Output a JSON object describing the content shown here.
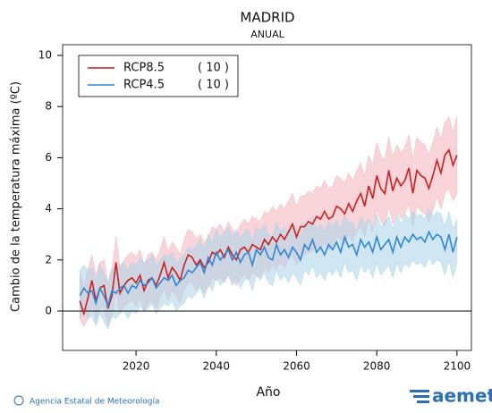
{
  "chart_data": {
    "type": "band-line",
    "title": "MADRID",
    "subtitle": "ANUAL",
    "xlabel": "Año",
    "ylabel": "Cambio de la temperatura máxima (ºC)",
    "xlim": [
      2001.7,
      2103.6
    ],
    "xticks": [
      2020,
      2040,
      2060,
      2080,
      2100
    ],
    "ylim": [
      -1.54,
      10.42
    ],
    "yticks": [
      0,
      2,
      4,
      6,
      8,
      10
    ],
    "zero_line": true,
    "legend": "upper left",
    "x": [
      2006,
      2007,
      2008,
      2009,
      2010,
      2011,
      2012,
      2013,
      2014,
      2015,
      2016,
      2017,
      2018,
      2019,
      2020,
      2021,
      2022,
      2023,
      2024,
      2025,
      2026,
      2027,
      2028,
      2029,
      2030,
      2031,
      2032,
      2033,
      2034,
      2035,
      2036,
      2037,
      2038,
      2039,
      2040,
      2041,
      2042,
      2043,
      2044,
      2045,
      2046,
      2047,
      2048,
      2049,
      2050,
      2051,
      2052,
      2053,
      2054,
      2055,
      2056,
      2057,
      2058,
      2059,
      2060,
      2061,
      2062,
      2063,
      2064,
      2065,
      2066,
      2067,
      2068,
      2069,
      2070,
      2071,
      2072,
      2073,
      2074,
      2075,
      2076,
      2077,
      2078,
      2079,
      2080,
      2081,
      2082,
      2083,
      2084,
      2085,
      2086,
      2087,
      2088,
      2089,
      2090,
      2091,
      2092,
      2093,
      2094,
      2095,
      2096,
      2097,
      2098,
      2099,
      2100
    ],
    "series": [
      {
        "name": "RCP8.5",
        "models_label": "( 10 )",
        "color": "#cc1f1f",
        "band_color": "#f4b3bb",
        "values": [
          0.4,
          -0.1,
          0.5,
          1.2,
          0.4,
          0.9,
          1.0,
          0.1,
          0.6,
          1.9,
          0.7,
          1.0,
          1.2,
          1.3,
          1.1,
          1.4,
          0.8,
          1.2,
          1.3,
          1.0,
          1.4,
          1.9,
          1.3,
          1.7,
          1.5,
          1.2,
          1.8,
          2.2,
          2.1,
          1.8,
          2.0,
          1.7,
          1.9,
          2.3,
          2.2,
          2.4,
          2.1,
          2.5,
          2.2,
          2.0,
          2.4,
          2.5,
          2.3,
          2.6,
          2.5,
          2.4,
          2.8,
          2.6,
          2.9,
          2.7,
          3.0,
          2.8,
          3.1,
          3.4,
          2.9,
          3.3,
          3.3,
          3.5,
          3.4,
          3.7,
          3.6,
          3.9,
          3.6,
          3.7,
          4.1,
          4.0,
          3.8,
          4.2,
          3.9,
          4.3,
          4.6,
          4.1,
          4.9,
          4.4,
          5.3,
          4.8,
          4.6,
          5.5,
          4.7,
          5.2,
          4.9,
          5.1,
          5.6,
          4.6,
          5.5,
          5.3,
          5.2,
          4.8,
          5.3,
          5.9,
          5.4,
          6.1,
          6.3,
          5.7,
          6.1
        ],
        "lower": [
          -0.3,
          -0.6,
          -0.3,
          0.3,
          -0.4,
          0.1,
          0.2,
          -0.6,
          -0.2,
          0.8,
          -0.1,
          0.2,
          0.3,
          0.4,
          0.2,
          0.5,
          0.0,
          0.3,
          0.4,
          0.1,
          0.5,
          0.9,
          0.4,
          0.8,
          0.6,
          0.3,
          0.8,
          1.1,
          1.1,
          0.8,
          1.0,
          0.7,
          0.9,
          1.3,
          1.2,
          1.3,
          1.1,
          1.4,
          1.2,
          1.0,
          1.3,
          1.4,
          1.2,
          1.5,
          1.4,
          1.3,
          1.7,
          1.5,
          1.8,
          1.6,
          1.9,
          1.7,
          2.0,
          2.2,
          1.8,
          2.1,
          2.2,
          2.3,
          2.3,
          2.5,
          2.4,
          2.7,
          2.4,
          2.5,
          2.9,
          2.8,
          2.6,
          3.0,
          2.7,
          3.1,
          3.3,
          2.9,
          3.6,
          3.1,
          4.0,
          3.5,
          3.3,
          4.1,
          3.4,
          3.9,
          3.6,
          3.8,
          4.2,
          3.3,
          4.1,
          3.9,
          3.8,
          3.5,
          3.9,
          4.5,
          4.0,
          4.6,
          4.8,
          4.3,
          4.6
        ],
        "upper": [
          1.5,
          0.9,
          1.6,
          2.2,
          1.4,
          1.9,
          2.0,
          1.1,
          1.6,
          2.9,
          1.7,
          2.0,
          2.2,
          2.3,
          2.1,
          2.4,
          1.8,
          2.2,
          2.3,
          2.0,
          2.4,
          2.9,
          2.3,
          2.7,
          2.5,
          2.2,
          2.8,
          3.2,
          3.1,
          2.8,
          3.0,
          2.7,
          2.9,
          3.3,
          3.2,
          3.4,
          3.1,
          3.5,
          3.2,
          3.0,
          3.4,
          3.6,
          3.4,
          3.7,
          3.6,
          3.5,
          3.9,
          3.8,
          4.1,
          3.9,
          4.2,
          4.0,
          4.3,
          4.6,
          4.1,
          4.5,
          4.5,
          4.7,
          4.6,
          4.9,
          4.8,
          5.1,
          4.8,
          4.9,
          5.3,
          5.2,
          5.0,
          5.4,
          5.1,
          5.5,
          5.8,
          5.3,
          6.1,
          5.7,
          6.6,
          6.1,
          5.9,
          6.8,
          6.0,
          6.5,
          6.2,
          6.4,
          6.9,
          5.9,
          6.8,
          6.6,
          6.5,
          6.1,
          6.6,
          7.2,
          6.7,
          7.4,
          7.6,
          7.0,
          7.6
        ]
      },
      {
        "name": "RCP4.5",
        "models_label": "( 10 )",
        "color": "#2f86d6",
        "band_color": "#a9d4ea",
        "values": [
          0.6,
          0.9,
          0.7,
          0.8,
          0.3,
          0.9,
          0.6,
          0.2,
          0.8,
          0.7,
          0.9,
          1.0,
          0.7,
          1.0,
          0.9,
          1.2,
          1.0,
          1.1,
          1.3,
          0.9,
          1.1,
          1.3,
          1.2,
          1.4,
          1.0,
          1.2,
          1.3,
          1.6,
          1.5,
          1.7,
          1.9,
          1.5,
          2.1,
          1.8,
          2.3,
          2.0,
          2.2,
          2.4,
          2.0,
          2.3,
          1.9,
          2.2,
          2.3,
          1.8,
          2.4,
          2.2,
          2.5,
          2.1,
          2.0,
          2.6,
          2.2,
          2.4,
          2.1,
          2.5,
          2.3,
          2.0,
          2.6,
          2.4,
          2.8,
          2.3,
          2.5,
          2.2,
          2.6,
          2.4,
          2.7,
          2.3,
          2.9,
          2.5,
          2.6,
          2.2,
          2.8,
          2.5,
          2.7,
          2.3,
          2.9,
          2.4,
          2.6,
          2.8,
          2.3,
          2.9,
          2.5,
          2.9,
          2.7,
          3.0,
          2.8,
          2.9,
          2.7,
          3.1,
          2.8,
          3.0,
          2.9,
          2.4,
          3.0,
          2.3,
          2.9
        ],
        "lower": [
          -0.3,
          0.0,
          -0.3,
          -0.2,
          -0.6,
          -0.1,
          -0.4,
          -0.7,
          -0.2,
          -0.3,
          -0.1,
          0.0,
          -0.3,
          0.0,
          -0.1,
          0.2,
          0.0,
          0.1,
          0.3,
          -0.1,
          0.1,
          0.3,
          0.2,
          0.4,
          0.0,
          0.2,
          0.3,
          0.6,
          0.5,
          0.7,
          0.9,
          0.5,
          1.1,
          0.8,
          1.3,
          1.0,
          1.2,
          1.4,
          1.0,
          1.3,
          0.9,
          1.2,
          1.3,
          0.8,
          1.4,
          1.2,
          1.5,
          1.1,
          1.0,
          1.6,
          1.2,
          1.4,
          1.1,
          1.5,
          1.3,
          1.0,
          1.6,
          1.4,
          1.8,
          1.3,
          1.5,
          1.2,
          1.6,
          1.4,
          1.7,
          1.3,
          1.9,
          1.5,
          1.6,
          1.2,
          1.8,
          1.5,
          1.7,
          1.3,
          1.9,
          1.4,
          1.6,
          1.8,
          1.3,
          1.9,
          1.5,
          1.9,
          1.7,
          2.0,
          1.8,
          1.9,
          1.7,
          2.1,
          1.8,
          2.0,
          1.9,
          1.4,
          2.0,
          1.3,
          1.9
        ],
        "upper": [
          1.6,
          1.8,
          1.6,
          1.7,
          1.2,
          1.8,
          1.5,
          1.1,
          1.7,
          1.6,
          1.8,
          1.9,
          1.6,
          1.9,
          1.8,
          2.1,
          1.9,
          2.0,
          2.2,
          1.8,
          2.0,
          2.2,
          2.1,
          2.3,
          1.9,
          2.1,
          2.2,
          2.5,
          2.4,
          2.6,
          2.8,
          2.4,
          3.0,
          2.7,
          3.2,
          2.9,
          3.1,
          3.3,
          2.9,
          3.2,
          2.8,
          3.1,
          3.2,
          2.7,
          3.3,
          3.1,
          3.4,
          3.0,
          2.9,
          3.5,
          3.1,
          3.3,
          3.0,
          3.4,
          3.2,
          2.9,
          3.5,
          3.3,
          3.7,
          3.2,
          3.4,
          3.1,
          3.5,
          3.3,
          3.6,
          3.2,
          3.8,
          3.4,
          3.5,
          3.1,
          3.7,
          3.4,
          3.6,
          3.2,
          3.8,
          3.3,
          3.5,
          3.7,
          3.2,
          3.8,
          3.4,
          3.8,
          3.6,
          3.9,
          3.7,
          3.8,
          3.6,
          4.0,
          3.7,
          3.9,
          3.8,
          3.3,
          3.9,
          3.2,
          3.6
        ]
      }
    ]
  },
  "footer": {
    "agency": "Agencia Estatal de Meteorología",
    "logo": "aemet"
  }
}
